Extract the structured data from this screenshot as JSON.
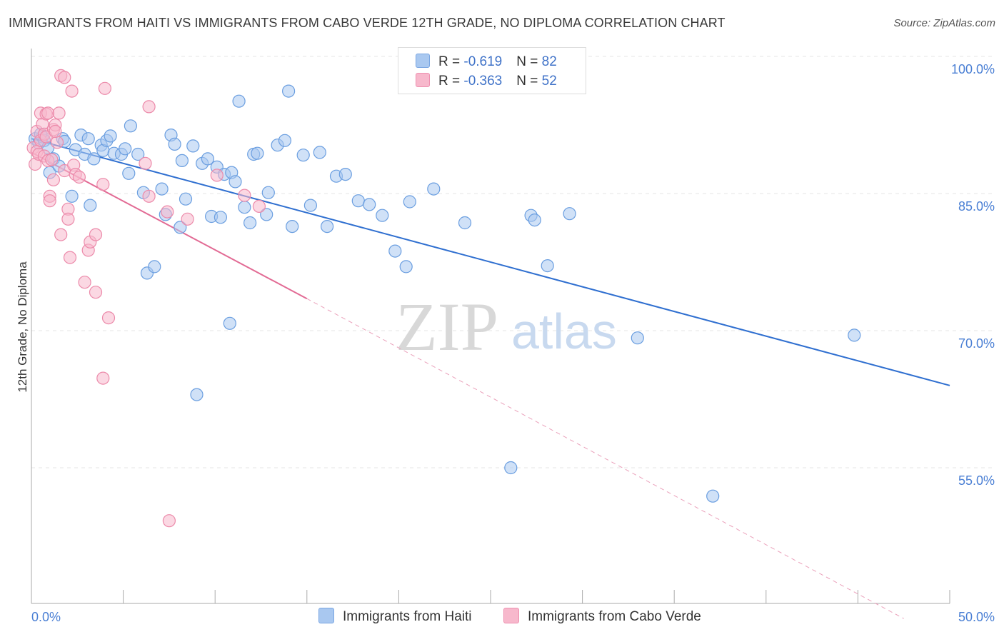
{
  "title": "IMMIGRANTS FROM HAITI VS IMMIGRANTS FROM CABO VERDE 12TH GRADE, NO DIPLOMA CORRELATION CHART",
  "source": "Source: ZipAtlas.com",
  "watermark": {
    "zip": "ZIP",
    "atlas": "atlas"
  },
  "legend": {
    "rows": [
      {
        "r_label": "R = ",
        "r_value": "-0.619",
        "n_label": "N = ",
        "n_value": "82",
        "color": "#a9c8f0"
      },
      {
        "r_label": "R = ",
        "r_value": "-0.363",
        "n_label": "N = ",
        "n_value": "52",
        "color": "#f7b8cc"
      }
    ]
  },
  "bottom_legend": [
    {
      "label": "Immigrants from Haiti",
      "color": "#a9c8f0"
    },
    {
      "label": "Immigrants from Cabo Verde",
      "color": "#f7b8cc"
    }
  ],
  "chart_data": {
    "type": "scatter",
    "title": "IMMIGRANTS FROM HAITI VS IMMIGRANTS FROM CABO VERDE 12TH GRADE, NO DIPLOMA CORRELATION CHART",
    "xlabel": "",
    "ylabel": "12th Grade, No Diploma",
    "xlim": [
      0,
      50
    ],
    "ylim": [
      40,
      102
    ],
    "x_tick_labels": [
      "0.0%",
      "50.0%"
    ],
    "y_ticks": [
      55,
      70,
      85,
      100
    ],
    "y_tick_labels": [
      "55.0%",
      "70.0%",
      "85.0%",
      "100.0%"
    ],
    "grid": true,
    "legend_position": "top-center",
    "series": [
      {
        "name": "Immigrants from Haiti",
        "color": "#6a9ee0",
        "fill": "#a9c8f0",
        "trend": {
          "x": [
            0,
            50
          ],
          "y": [
            91.0,
            64.0
          ]
        },
        "points": [
          [
            0.2,
            91.0
          ],
          [
            0.4,
            90.5
          ],
          [
            0.6,
            91.2
          ],
          [
            0.7,
            90.8
          ],
          [
            1.0,
            87.3
          ],
          [
            1.2,
            88.8
          ],
          [
            1.5,
            88.0
          ],
          [
            1.7,
            91.0
          ],
          [
            1.8,
            90.7
          ],
          [
            2.2,
            84.7
          ],
          [
            2.4,
            89.8
          ],
          [
            2.7,
            91.4
          ],
          [
            2.9,
            89.3
          ],
          [
            3.1,
            91.0
          ],
          [
            3.2,
            83.7
          ],
          [
            3.4,
            88.8
          ],
          [
            3.8,
            90.3
          ],
          [
            3.9,
            89.7
          ],
          [
            4.1,
            90.8
          ],
          [
            4.3,
            91.3
          ],
          [
            4.5,
            89.4
          ],
          [
            4.9,
            89.3
          ],
          [
            5.1,
            89.9
          ],
          [
            5.3,
            87.2
          ],
          [
            5.4,
            92.4
          ],
          [
            5.8,
            89.3
          ],
          [
            6.1,
            85.1
          ],
          [
            6.3,
            76.3
          ],
          [
            6.7,
            77.0
          ],
          [
            7.1,
            85.5
          ],
          [
            7.3,
            82.7
          ],
          [
            7.6,
            91.4
          ],
          [
            7.8,
            90.4
          ],
          [
            8.1,
            81.3
          ],
          [
            8.2,
            88.6
          ],
          [
            8.4,
            84.4
          ],
          [
            8.8,
            90.2
          ],
          [
            9.0,
            63.0
          ],
          [
            9.3,
            88.3
          ],
          [
            9.6,
            88.8
          ],
          [
            9.8,
            82.5
          ],
          [
            10.1,
            87.9
          ],
          [
            10.3,
            82.4
          ],
          [
            10.5,
            87.1
          ],
          [
            10.8,
            70.8
          ],
          [
            10.9,
            87.3
          ],
          [
            11.1,
            86.3
          ],
          [
            11.3,
            95.1
          ],
          [
            11.6,
            83.5
          ],
          [
            11.9,
            81.8
          ],
          [
            12.1,
            89.3
          ],
          [
            12.3,
            89.4
          ],
          [
            12.8,
            82.7
          ],
          [
            12.9,
            85.1
          ],
          [
            13.4,
            90.3
          ],
          [
            13.8,
            90.8
          ],
          [
            14.0,
            96.2
          ],
          [
            14.2,
            81.4
          ],
          [
            14.8,
            89.2
          ],
          [
            15.2,
            83.7
          ],
          [
            15.7,
            89.5
          ],
          [
            16.1,
            81.4
          ],
          [
            16.6,
            86.9
          ],
          [
            17.1,
            87.1
          ],
          [
            17.8,
            84.2
          ],
          [
            18.4,
            83.8
          ],
          [
            19.1,
            82.6
          ],
          [
            19.8,
            78.7
          ],
          [
            20.4,
            77.0
          ],
          [
            20.6,
            84.1
          ],
          [
            21.9,
            85.5
          ],
          [
            23.6,
            81.8
          ],
          [
            26.1,
            55.0
          ],
          [
            27.2,
            82.6
          ],
          [
            27.4,
            82.1
          ],
          [
            28.1,
            77.1
          ],
          [
            29.3,
            82.8
          ],
          [
            33.0,
            69.2
          ],
          [
            37.1,
            51.9
          ],
          [
            44.8,
            69.5
          ],
          [
            0.5,
            91.5
          ],
          [
            0.9,
            90.0
          ]
        ]
      },
      {
        "name": "Immigrants from Cabo Verde",
        "color": "#ec8aaa",
        "fill": "#f7b8cc",
        "trend": {
          "x": [
            0,
            15
          ],
          "y": [
            89.5,
            73.5
          ]
        },
        "trend_dashed": {
          "x": [
            15,
            47.5
          ],
          "y": [
            73.5,
            38.5
          ]
        },
        "points": [
          [
            0.1,
            90.0
          ],
          [
            0.2,
            88.2
          ],
          [
            0.3,
            91.8
          ],
          [
            0.3,
            89.6
          ],
          [
            0.4,
            89.3
          ],
          [
            0.5,
            90.8
          ],
          [
            0.5,
            93.8
          ],
          [
            0.6,
            92.6
          ],
          [
            0.7,
            89.1
          ],
          [
            0.7,
            91.5
          ],
          [
            0.8,
            93.7
          ],
          [
            0.9,
            88.6
          ],
          [
            0.9,
            93.8
          ],
          [
            1.0,
            84.7
          ],
          [
            1.0,
            84.2
          ],
          [
            1.1,
            88.7
          ],
          [
            1.2,
            86.5
          ],
          [
            1.2,
            92.0
          ],
          [
            1.3,
            92.5
          ],
          [
            1.4,
            90.6
          ],
          [
            1.5,
            93.8
          ],
          [
            1.6,
            80.5
          ],
          [
            1.6,
            97.9
          ],
          [
            1.8,
            87.5
          ],
          [
            1.8,
            97.7
          ],
          [
            2.0,
            83.3
          ],
          [
            2.0,
            82.2
          ],
          [
            2.1,
            78.0
          ],
          [
            2.2,
            96.2
          ],
          [
            2.3,
            88.1
          ],
          [
            2.4,
            87.1
          ],
          [
            2.6,
            86.8
          ],
          [
            2.9,
            75.3
          ],
          [
            3.1,
            78.8
          ],
          [
            3.2,
            79.7
          ],
          [
            3.5,
            74.2
          ],
          [
            3.5,
            80.5
          ],
          [
            3.9,
            64.8
          ],
          [
            3.9,
            86.0
          ],
          [
            4.0,
            96.5
          ],
          [
            4.2,
            71.4
          ],
          [
            6.2,
            88.3
          ],
          [
            6.4,
            84.7
          ],
          [
            6.4,
            94.5
          ],
          [
            7.4,
            83.0
          ],
          [
            7.5,
            49.2
          ],
          [
            8.5,
            82.2
          ],
          [
            10.1,
            87.0
          ],
          [
            11.6,
            84.8
          ],
          [
            12.4,
            83.6
          ],
          [
            0.8,
            91.2
          ],
          [
            1.3,
            91.8
          ]
        ]
      }
    ]
  }
}
